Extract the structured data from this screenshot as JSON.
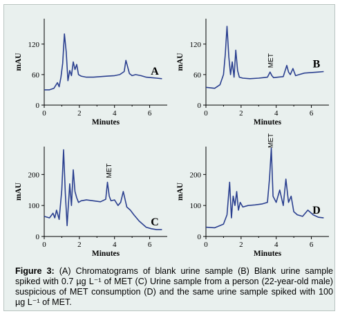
{
  "caption": {
    "label": "Figure 3:",
    "text": "(A) Chromatograms of blank urine sample (B) Blank urine sample spiked with 0.7 µg L⁻¹ of MET (C) Urine sample from a person (22-year-old male) suspicious of MET consumption (D) and the same urine sample spiked with 100 µg L⁻¹ of MET."
  },
  "colors": {
    "trace": "#2a3f8f",
    "axis": "#000000",
    "panel_bg": "#e9f0ee"
  },
  "chart_data": [
    {
      "type": "line",
      "panel_label": "A",
      "xlabel": "Minutes",
      "ylabel": "mAU",
      "xlim": [
        0,
        7
      ],
      "ylim": [
        0,
        170
      ],
      "xticks": [
        0,
        2,
        4,
        6
      ],
      "yticks": [
        0,
        60,
        120
      ],
      "annotations": [],
      "series": [
        {
          "x": [
            0.0,
            0.3,
            0.55,
            0.75,
            0.85,
            0.95,
            1.05,
            1.15,
            1.25,
            1.35,
            1.45,
            1.55,
            1.65,
            1.75,
            1.85,
            1.95,
            2.1,
            2.4,
            2.8,
            3.2,
            3.6,
            4.0,
            4.3,
            4.55,
            4.65,
            4.75,
            4.85,
            5.0,
            5.2,
            5.5,
            5.8,
            6.1,
            6.4,
            6.7
          ],
          "y": [
            30,
            30,
            33,
            44,
            36,
            55,
            82,
            140,
            105,
            48,
            68,
            58,
            85,
            70,
            80,
            60,
            57,
            55,
            55,
            56,
            57,
            58,
            60,
            66,
            88,
            75,
            62,
            58,
            60,
            58,
            55,
            54,
            53,
            52
          ]
        }
      ]
    },
    {
      "type": "line",
      "panel_label": "B",
      "xlabel": "Minutes",
      "ylabel": "mAU",
      "xlim": [
        0,
        7
      ],
      "ylim": [
        0,
        170
      ],
      "xticks": [
        0,
        2,
        4,
        6
      ],
      "yticks": [
        0,
        60,
        120
      ],
      "annotations": [
        {
          "text": "MET",
          "x": 3.7
        }
      ],
      "series": [
        {
          "x": [
            0.0,
            0.5,
            0.8,
            1.0,
            1.1,
            1.2,
            1.3,
            1.4,
            1.5,
            1.6,
            1.7,
            1.8,
            1.9,
            2.1,
            2.5,
            3.0,
            3.5,
            3.65,
            3.75,
            3.85,
            4.1,
            4.4,
            4.6,
            4.7,
            4.8,
            4.95,
            5.1,
            5.3,
            5.6,
            6.0,
            6.4,
            6.7
          ],
          "y": [
            35,
            33,
            40,
            60,
            100,
            155,
            95,
            60,
            85,
            55,
            108,
            68,
            55,
            53,
            52,
            53,
            55,
            65,
            58,
            54,
            55,
            56,
            78,
            65,
            60,
            72,
            58,
            60,
            63,
            64,
            65,
            66
          ]
        }
      ]
    },
    {
      "type": "line",
      "panel_label": "C",
      "xlabel": "Minutes",
      "ylabel": "mAU",
      "xlim": [
        0,
        7
      ],
      "ylim": [
        0,
        290
      ],
      "xticks": [
        0,
        2,
        4,
        6
      ],
      "yticks": [
        0,
        100,
        200
      ],
      "annotations": [
        {
          "text": "MET",
          "x": 3.7
        }
      ],
      "series": [
        {
          "x": [
            0.0,
            0.3,
            0.5,
            0.6,
            0.7,
            0.85,
            1.0,
            1.1,
            1.2,
            1.3,
            1.45,
            1.55,
            1.65,
            1.75,
            1.85,
            1.95,
            2.1,
            2.4,
            2.8,
            3.2,
            3.5,
            3.6,
            3.7,
            3.8,
            4.0,
            4.2,
            4.35,
            4.5,
            4.7,
            4.9,
            5.1,
            5.4,
            5.8,
            6.1,
            6.4,
            6.7
          ],
          "y": [
            65,
            60,
            75,
            60,
            85,
            55,
            150,
            280,
            140,
            35,
            170,
            100,
            215,
            145,
            125,
            110,
            115,
            118,
            115,
            112,
            120,
            175,
            130,
            115,
            118,
            100,
            110,
            145,
            95,
            85,
            70,
            50,
            30,
            25,
            22,
            22
          ]
        }
      ]
    },
    {
      "type": "line",
      "panel_label": "D",
      "xlabel": "Minutes",
      "ylabel": "mAU",
      "xlim": [
        0,
        7
      ],
      "ylim": [
        0,
        290
      ],
      "xticks": [
        0,
        2,
        4,
        6
      ],
      "yticks": [
        0,
        100,
        200
      ],
      "annotations": [
        {
          "text": "MET",
          "x": 3.7
        }
      ],
      "series": [
        {
          "x": [
            0.0,
            0.5,
            0.8,
            1.0,
            1.2,
            1.35,
            1.45,
            1.55,
            1.65,
            1.75,
            1.85,
            1.95,
            2.1,
            2.4,
            2.8,
            3.2,
            3.5,
            3.62,
            3.72,
            3.82,
            4.0,
            4.2,
            4.4,
            4.55,
            4.7,
            4.85,
            5.0,
            5.2,
            5.5,
            5.8,
            6.1,
            6.4,
            6.7
          ],
          "y": [
            30,
            28,
            35,
            40,
            70,
            175,
            60,
            130,
            100,
            145,
            85,
            110,
            95,
            100,
            102,
            105,
            110,
            190,
            285,
            130,
            110,
            150,
            100,
            185,
            110,
            130,
            80,
            70,
            65,
            85,
            70,
            62,
            60
          ]
        }
      ]
    }
  ]
}
